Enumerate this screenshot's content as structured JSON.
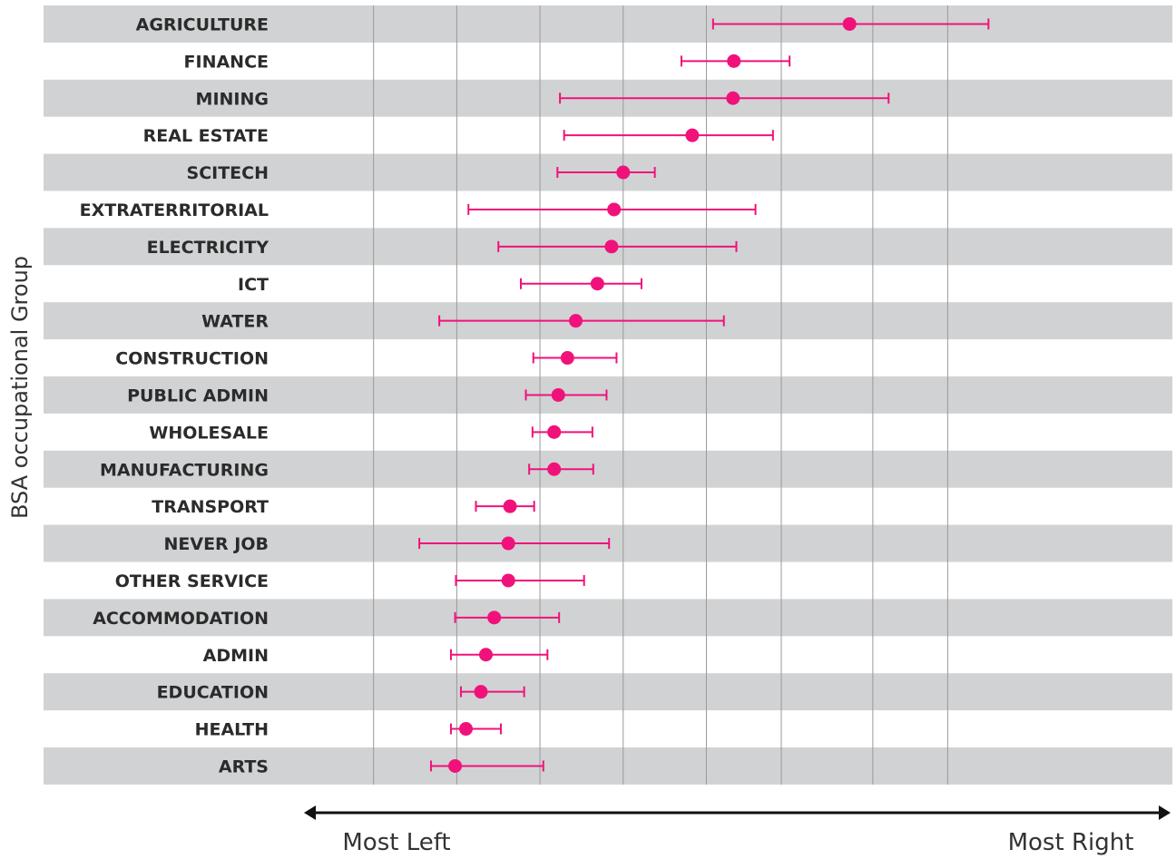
{
  "chart_data": {
    "type": "scatter",
    "ylabel": "BSA occupational Group",
    "x_axis_labels": {
      "left": "Most Left",
      "right": "Most Right"
    },
    "xlim": [
      0,
      100
    ],
    "gridlines": [
      4,
      14,
      24,
      34,
      44,
      53,
      64,
      73
    ],
    "grid": true,
    "colors": {
      "point": "#f0127a",
      "band": "#d1d2d4",
      "grid": "#9a9a9a",
      "arrow": "#111111"
    },
    "categories": [
      "AGRICULTURE",
      "FINANCE",
      "MINING",
      "REAL ESTATE",
      "SCITECH",
      "EXTRATERRITORIAL",
      "ELECTRICITY",
      "ICT",
      "WATER",
      "CONSTRUCTION",
      "PUBLIC ADMIN",
      "WHOLESALE",
      "MANUFACTURING",
      "TRANSPORT",
      "NEVER JOB",
      "OTHER SERVICE",
      "ACCOMMODATION",
      "ADMIN",
      "EDUCATION",
      "HEALTH",
      "ARTS"
    ],
    "series": [
      {
        "estimate": [
          61.2,
          47.3,
          47.2,
          42.3,
          34.0,
          32.9,
          32.6,
          30.9,
          28.3,
          27.3,
          26.2,
          25.7,
          25.7,
          20.4,
          20.2,
          20.2,
          18.5,
          17.5,
          16.9,
          15.1,
          13.8
        ],
        "lower": [
          44.8,
          41.0,
          26.4,
          26.9,
          26.1,
          15.4,
          19.0,
          21.7,
          11.9,
          23.2,
          22.3,
          23.1,
          22.7,
          16.3,
          9.5,
          13.9,
          13.8,
          13.3,
          14.5,
          13.3,
          10.9
        ],
        "upper": [
          77.9,
          54.0,
          65.9,
          52.0,
          37.8,
          49.9,
          47.6,
          36.2,
          46.1,
          33.2,
          32.0,
          30.3,
          30.4,
          23.3,
          32.3,
          29.3,
          26.3,
          24.9,
          22.1,
          19.3,
          24.4
        ]
      }
    ]
  }
}
